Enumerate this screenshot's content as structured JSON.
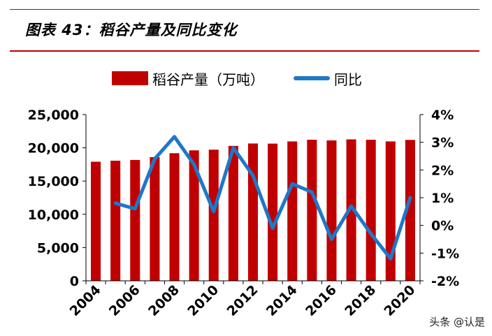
{
  "header": {
    "title": "图表 43：稻谷产量及同比变化"
  },
  "watermark": "头条 @认是",
  "colors": {
    "bar": "#c00000",
    "line": "#1f77c8",
    "rule": "#c00000"
  },
  "chart_data": {
    "type": "bar",
    "combo": "bar + line (secondary axis)",
    "legend_position": "top",
    "grid": false,
    "categories": [
      "2004",
      "2005",
      "2006",
      "2007",
      "2008",
      "2009",
      "2010",
      "2011",
      "2012",
      "2013",
      "2014",
      "2015",
      "2016",
      "2017",
      "2018",
      "2019",
      "2020"
    ],
    "x_tick_labels": [
      "2004",
      "2006",
      "2008",
      "2010",
      "2012",
      "2014",
      "2016",
      "2018",
      "2020"
    ],
    "series": [
      {
        "name": "稻谷产量（万吨）",
        "type": "bar",
        "axis": "left",
        "values": [
          17910,
          18060,
          18170,
          18600,
          19190,
          19620,
          19720,
          20290,
          20650,
          20630,
          20960,
          21210,
          21110,
          21270,
          21210,
          20960,
          21190
        ]
      },
      {
        "name": "同比",
        "type": "line",
        "axis": "right",
        "values": [
          null,
          0.8,
          0.6,
          2.4,
          3.2,
          2.2,
          0.5,
          2.8,
          1.8,
          -0.1,
          1.5,
          1.2,
          -0.5,
          0.7,
          -0.3,
          -1.2,
          1.0
        ]
      }
    ],
    "y_left": {
      "min": 0,
      "max": 25000,
      "ticks": [
        "0",
        "5,000",
        "10,000",
        "15,000",
        "20,000",
        "25,000"
      ]
    },
    "y_right": {
      "min": -2,
      "max": 4,
      "ticks": [
        "-2%",
        "-1%",
        "0%",
        "1%",
        "2%",
        "3%",
        "4%"
      ]
    }
  }
}
